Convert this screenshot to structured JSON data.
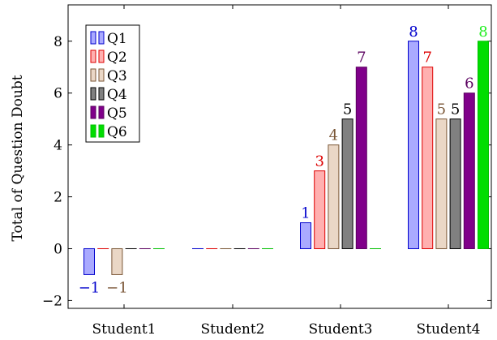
{
  "chart_data": {
    "type": "bar",
    "ylabel": "Total of Question Doubt",
    "ylim": [
      -2.3,
      9.4
    ],
    "yticks": [
      -2,
      0,
      2,
      4,
      6,
      8
    ],
    "categories": [
      "Student1",
      "Student2",
      "Student3",
      "Student4"
    ],
    "grid": false,
    "legend_position": "top-left",
    "series": [
      {
        "name": "Q1",
        "values": [
          -1,
          0,
          1,
          8
        ],
        "fill": "#aaaaff",
        "stroke": "#0000cc",
        "label_color": "#0000cc"
      },
      {
        "name": "Q2",
        "values": [
          0,
          0,
          3,
          7
        ],
        "fill": "#ffb0b0",
        "stroke": "#dd0000",
        "label_color": "#dd0000"
      },
      {
        "name": "Q3",
        "values": [
          -1,
          0,
          4,
          5
        ],
        "fill": "#ead7c6",
        "stroke": "#7a5636",
        "label_color": "#7a5636"
      },
      {
        "name": "Q4",
        "values": [
          0,
          0,
          5,
          5
        ],
        "fill": "#808080",
        "stroke": "#000000",
        "label_color": "#000000"
      },
      {
        "name": "Q5",
        "values": [
          0,
          0,
          7,
          6
        ],
        "fill": "#80008a",
        "stroke": "#5a005f",
        "label_color": "#5a005f"
      },
      {
        "name": "Q6",
        "values": [
          0,
          0,
          0,
          8
        ],
        "fill": "#00dd00",
        "stroke": "#00c000",
        "label_color": "#22ee22"
      }
    ],
    "data_labels": [
      {
        "series": 0,
        "category": 0,
        "text": "−1",
        "position": "below"
      },
      {
        "series": 2,
        "category": 0,
        "text": "−1",
        "position": "below"
      },
      {
        "series": 0,
        "category": 2,
        "text": "1",
        "position": "above"
      },
      {
        "series": 1,
        "category": 2,
        "text": "3",
        "position": "above"
      },
      {
        "series": 2,
        "category": 2,
        "text": "4",
        "position": "above"
      },
      {
        "series": 3,
        "category": 2,
        "text": "5",
        "position": "above"
      },
      {
        "series": 4,
        "category": 2,
        "text": "7",
        "position": "above"
      },
      {
        "series": 0,
        "category": 3,
        "text": "8",
        "position": "above"
      },
      {
        "series": 1,
        "category": 3,
        "text": "7",
        "position": "above"
      },
      {
        "series": 2,
        "category": 3,
        "text": "5",
        "position": "above"
      },
      {
        "series": 3,
        "category": 3,
        "text": "5",
        "position": "above"
      },
      {
        "series": 4,
        "category": 3,
        "text": "6",
        "position": "above"
      },
      {
        "series": 5,
        "category": 3,
        "text": "8",
        "position": "above"
      }
    ]
  }
}
